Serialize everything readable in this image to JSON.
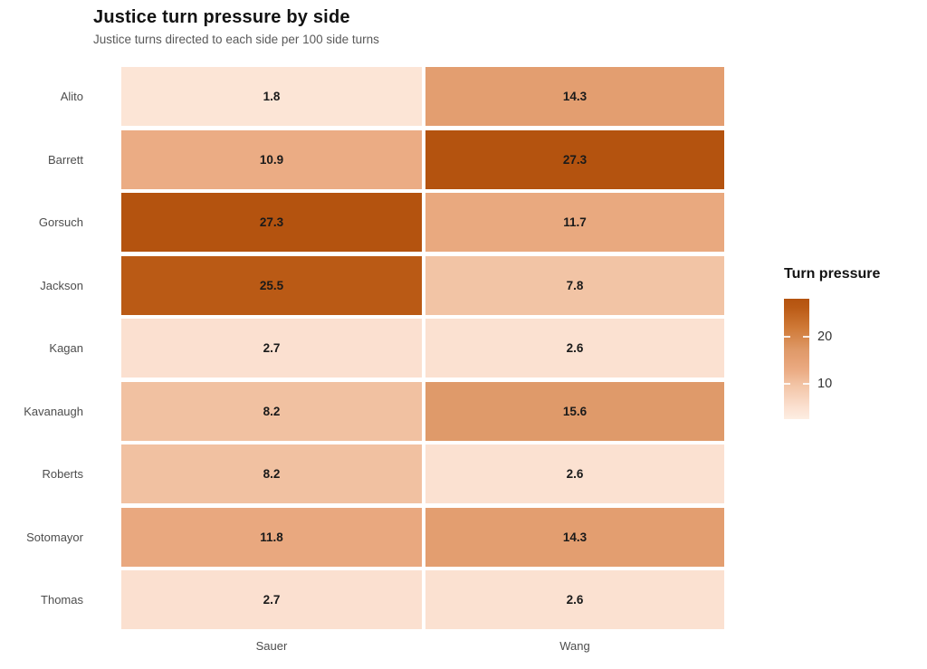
{
  "page": {
    "background": "#ffffff"
  },
  "chart_data": {
    "type": "heatmap",
    "title": "Justice turn pressure by side",
    "subtitle": "Justice turns directed to each side per 100 side turns",
    "x_categories": [
      "Sauer",
      "Wang"
    ],
    "y_categories": [
      "Alito",
      "Barrett",
      "Gorsuch",
      "Jackson",
      "Kagan",
      "Kavanaugh",
      "Roberts",
      "Sotomayor",
      "Thomas"
    ],
    "values": [
      [
        1.8,
        14.3
      ],
      [
        10.9,
        27.3
      ],
      [
        27.3,
        11.7
      ],
      [
        25.5,
        7.8
      ],
      [
        2.7,
        2.6
      ],
      [
        8.2,
        15.6
      ],
      [
        8.2,
        2.6
      ],
      [
        11.8,
        14.3
      ],
      [
        2.7,
        2.6
      ]
    ],
    "value_domain": [
      0,
      27.3
    ],
    "grid_on": false,
    "legend": {
      "title": "Turn pressure",
      "position": "right",
      "ticks": [
        {
          "label": "20",
          "pos_from_top": 0.316
        },
        {
          "label": "10",
          "pos_from_top": 0.707
        }
      ]
    },
    "color_ramp": [
      {
        "t": 0.0,
        "color": "#fdeee2"
      },
      {
        "t": 0.1,
        "color": "#fbe0d0"
      },
      {
        "t": 0.29,
        "color": "#f2c3a4"
      },
      {
        "t": 0.4,
        "color": "#ebac84"
      },
      {
        "t": 0.52,
        "color": "#e39e70"
      },
      {
        "t": 0.57,
        "color": "#df9a6a"
      },
      {
        "t": 0.75,
        "color": "#d07b39"
      },
      {
        "t": 0.93,
        "color": "#ba5a15"
      },
      {
        "t": 1.0,
        "color": "#b4530f"
      }
    ],
    "cell_text_color": "#1a1a1a",
    "axis_text_color": "#4d4d4d"
  }
}
